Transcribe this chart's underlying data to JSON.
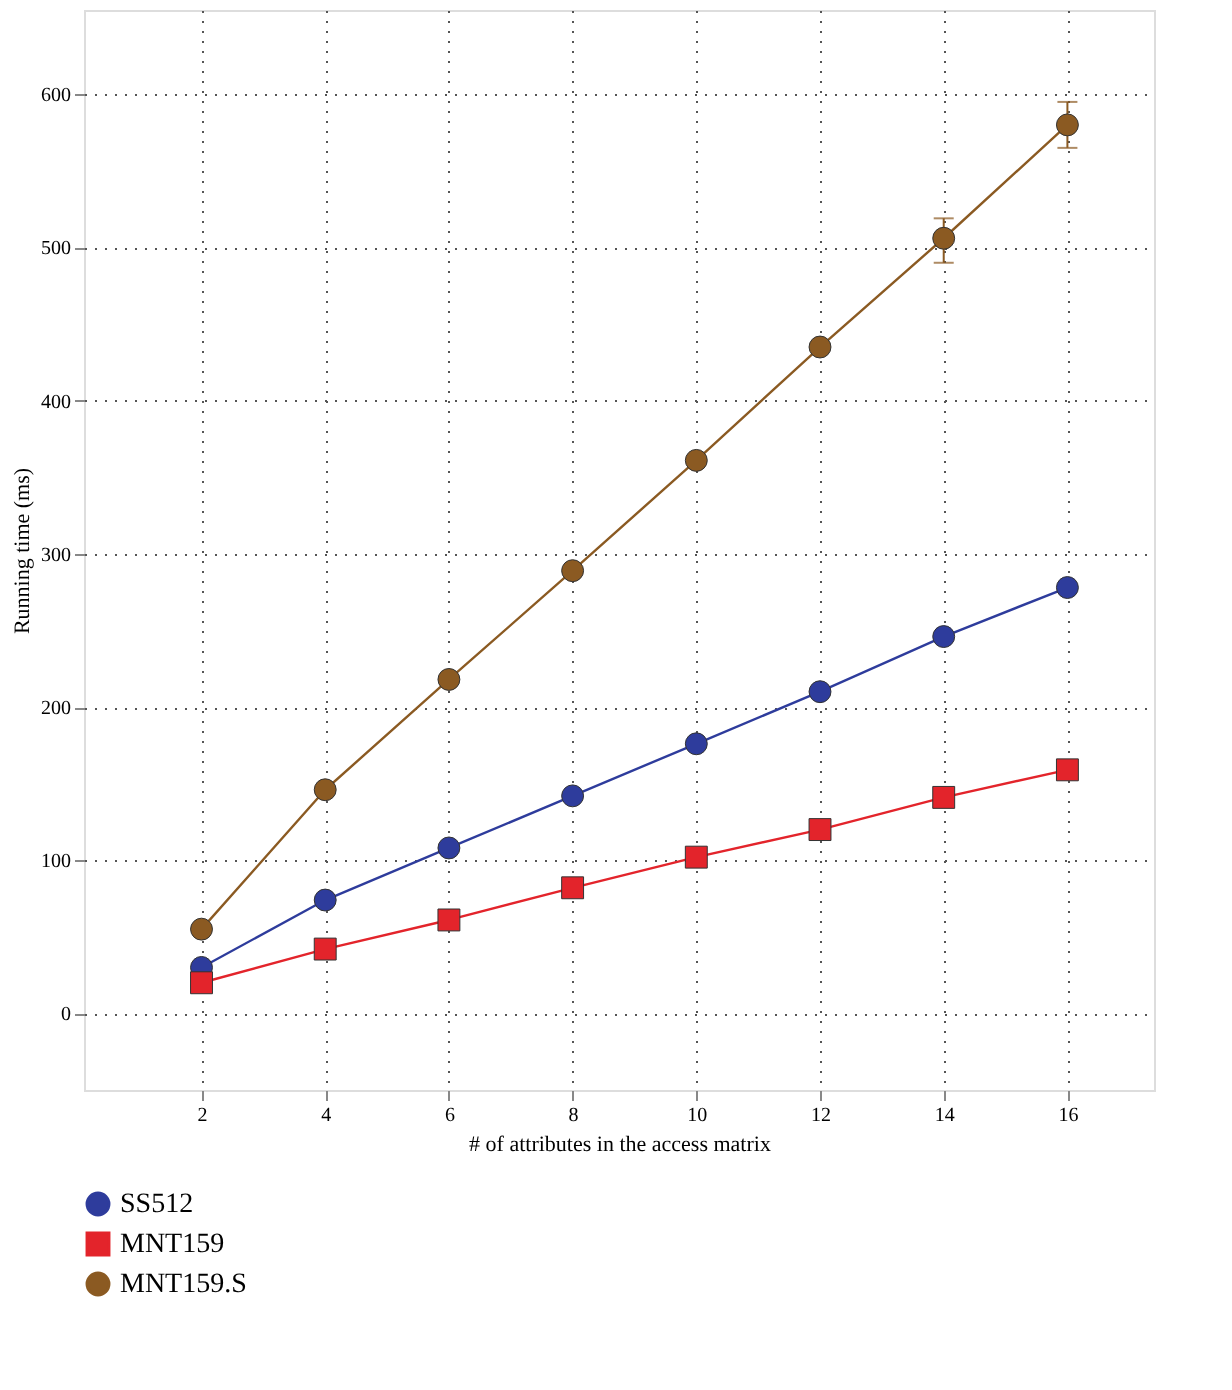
{
  "chart_data": {
    "type": "line",
    "xlabel": "# of attributes in the access matrix",
    "ylabel": "Running time (ms)",
    "x": [
      2,
      4,
      6,
      8,
      10,
      12,
      14,
      16
    ],
    "series": [
      {
        "name": "SS512",
        "color": "#2e3c9c",
        "marker": "circle",
        "values": [
          30,
          74,
          108,
          142,
          176,
          210,
          246,
          278
        ]
      },
      {
        "name": "MNT159",
        "color": "#e3242b",
        "marker": "square",
        "values": [
          20,
          42,
          61,
          82,
          102,
          120,
          141,
          159
        ]
      },
      {
        "name": "MNT159.S",
        "color": "#8b5a22",
        "marker": "circle",
        "values": [
          55,
          146,
          218,
          289,
          361,
          435,
          506,
          580
        ],
        "errors": [
          null,
          null,
          null,
          null,
          null,
          null,
          [
            490,
            519
          ],
          [
            565,
            595
          ]
        ]
      }
    ],
    "xlim": [
      0.1,
      17.4
    ],
    "xticks": [
      2,
      4,
      6,
      8,
      10,
      12,
      14,
      16
    ],
    "ylim": [
      -50,
      655
    ],
    "yticks": [
      0,
      100,
      200,
      300,
      400,
      500,
      600
    ],
    "grid": true,
    "line_style": "solid",
    "legend": "bottom left"
  }
}
